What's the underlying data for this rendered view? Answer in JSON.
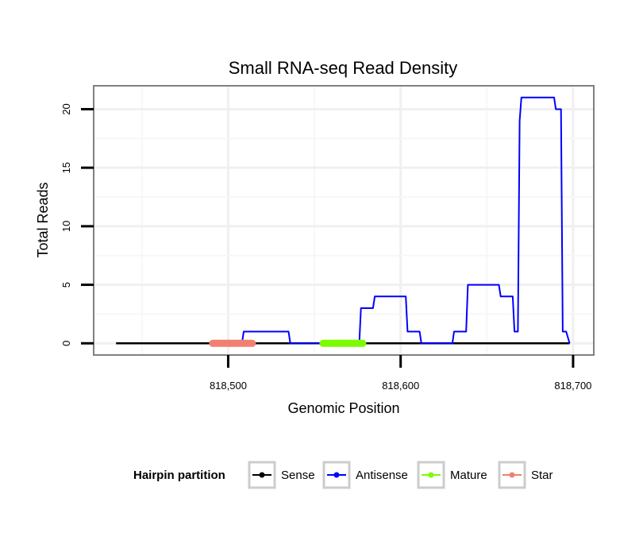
{
  "chart_data": {
    "type": "line",
    "title": "Small RNA-seq Read Density",
    "xlabel": "Genomic Position",
    "ylabel": "Total Reads",
    "xlim": [
      818422,
      818712
    ],
    "ylim": [
      -1,
      22
    ],
    "x_ticks": [
      818500,
      818600,
      818700
    ],
    "x_tick_labels": [
      "818,500",
      "818,600",
      "818,700"
    ],
    "y_ticks": [
      0,
      5,
      10,
      15,
      20
    ],
    "y_tick_labels": [
      "0",
      "5",
      "10",
      "15",
      "20"
    ],
    "grid": true,
    "legend": {
      "title": "Hairpin partition",
      "position": "bottom",
      "entries": [
        {
          "name": "Sense",
          "color": "#000000"
        },
        {
          "name": "Antisense",
          "color": "#0000ff"
        },
        {
          "name": "Mature",
          "color": "#7cfc00"
        },
        {
          "name": "Star",
          "color": "#f08070"
        }
      ]
    },
    "series": [
      {
        "name": "Sense",
        "color": "#000000",
        "x": [
          818435,
          818698
        ],
        "y": [
          0,
          0
        ]
      },
      {
        "name": "Antisense",
        "color": "#0000ff",
        "x": [
          818508,
          818509,
          818535,
          818536,
          818576,
          818577,
          818584,
          818585,
          818603,
          818604,
          818611,
          818612,
          818630,
          818631,
          818638,
          818639,
          818657,
          818658,
          818665,
          818666,
          818668,
          818669,
          818670,
          818689,
          818690,
          818693,
          818694,
          818696,
          818698
        ],
        "y": [
          0,
          1,
          1,
          0,
          0,
          3,
          3,
          4,
          4,
          1,
          1,
          0,
          0,
          1,
          1,
          5,
          5,
          4,
          4,
          1,
          1,
          19,
          21,
          21,
          20,
          20,
          1,
          1,
          0
        ]
      },
      {
        "name": "Mature",
        "color": "#7cfc00",
        "x": [
          818555,
          818578
        ],
        "y": [
          0,
          0
        ]
      },
      {
        "name": "Star",
        "color": "#f08070",
        "x": [
          818491,
          818514
        ],
        "y": [
          0,
          0
        ]
      }
    ]
  }
}
